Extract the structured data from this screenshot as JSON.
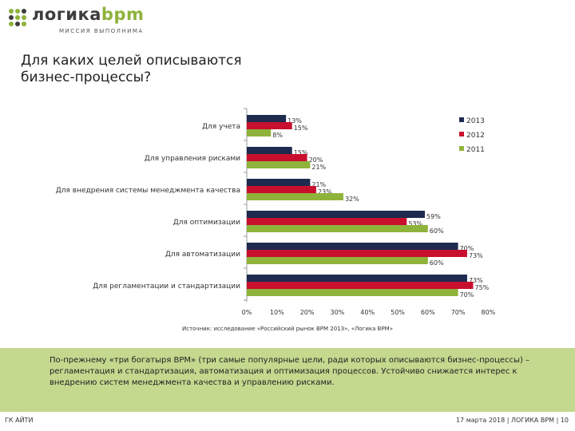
{
  "header": {
    "logo_text_main": "логика",
    "logo_text_accent": "bpm",
    "logo_tagline": "МИССИЯ ВЫПОЛНИМА",
    "page_title": "Для каких целей описываются\nбизнес-процессы?"
  },
  "colors": {
    "series_2013": "#1f2a4f",
    "series_2012": "#c8102e",
    "series_2011": "#8fb33a",
    "info_bg": "#c4d88e",
    "logo_dot": "#8db23a"
  },
  "chart_data": {
    "type": "bar",
    "orientation": "horizontal",
    "categories": [
      "Для учета",
      "Для управления рисками",
      "Для внедрения системы менеджмента качества",
      "Для оптимизации",
      "Для автоматизации",
      "Для регламентации и стандартизации"
    ],
    "series": [
      {
        "name": "2013",
        "values": [
          13,
          15,
          21,
          59,
          70,
          73
        ],
        "labels": [
          "13%",
          "15%",
          "21%",
          "59%",
          "70%",
          "73%"
        ]
      },
      {
        "name": "2012",
        "values": [
          15,
          20,
          23,
          53,
          73,
          75
        ],
        "labels": [
          "15%",
          "20%",
          "23%",
          "53%",
          "73%",
          "75%"
        ]
      },
      {
        "name": "2011",
        "values": [
          8,
          21,
          32,
          60,
          60,
          70
        ],
        "labels": [
          "8%",
          "21%",
          "32%",
          "60%",
          "60%",
          "70%"
        ]
      }
    ],
    "xlim": [
      0,
      80
    ],
    "x_ticks": [
      "0%",
      "10%",
      "20%",
      "30%",
      "40%",
      "50%",
      "60%",
      "70%",
      "80%"
    ],
    "legend": [
      "2013",
      "2012",
      "2011"
    ],
    "legend_position": "top-right",
    "title": "",
    "xlabel": "",
    "ylabel": ""
  },
  "source_note": "Источник: исследование «Российский рынок BPM 2013», «Логика BPM»",
  "info_text": "По-прежнему «три богатыря BPM» (три самые популярные цели, ради которых описываются бизнес-процессы) – регламентация и стандартизация, автоматизация и оптимизация процессов. Устойчиво снижается интерес к внедрению систем менеджмента качества и управлению рисками.",
  "footer": {
    "left": "ГК АЙТИ",
    "right": "17 марта 2018 | ЛОГИКА BPM | 10"
  }
}
